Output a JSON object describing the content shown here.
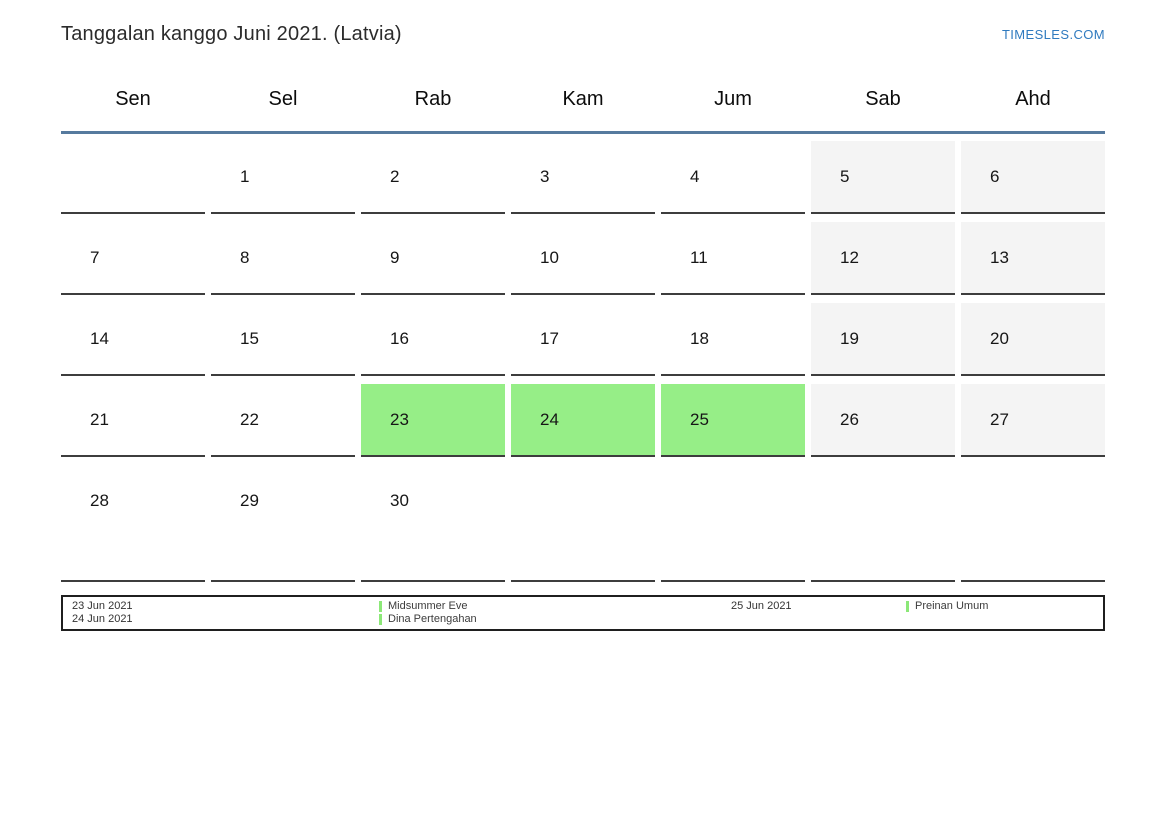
{
  "header": {
    "title": "Tanggalan kanggo Juni 2021. (Latvia)",
    "site_link": "TIMESLES.COM"
  },
  "calendar": {
    "day_headers": [
      "Sen",
      "Sel",
      "Rab",
      "Kam",
      "Jum",
      "Sab",
      "Ahd"
    ],
    "weeks": [
      [
        {
          "label": "",
          "type": "empty"
        },
        {
          "label": "1",
          "type": "day"
        },
        {
          "label": "2",
          "type": "day"
        },
        {
          "label": "3",
          "type": "day"
        },
        {
          "label": "4",
          "type": "day"
        },
        {
          "label": "5",
          "type": "weekend"
        },
        {
          "label": "6",
          "type": "weekend"
        }
      ],
      [
        {
          "label": "7",
          "type": "day"
        },
        {
          "label": "8",
          "type": "day"
        },
        {
          "label": "9",
          "type": "day"
        },
        {
          "label": "10",
          "type": "day"
        },
        {
          "label": "11",
          "type": "day"
        },
        {
          "label": "12",
          "type": "weekend"
        },
        {
          "label": "13",
          "type": "weekend"
        }
      ],
      [
        {
          "label": "14",
          "type": "day"
        },
        {
          "label": "15",
          "type": "day"
        },
        {
          "label": "16",
          "type": "day"
        },
        {
          "label": "17",
          "type": "day"
        },
        {
          "label": "18",
          "type": "day"
        },
        {
          "label": "19",
          "type": "weekend"
        },
        {
          "label": "20",
          "type": "weekend"
        }
      ],
      [
        {
          "label": "21",
          "type": "day"
        },
        {
          "label": "22",
          "type": "day"
        },
        {
          "label": "23",
          "type": "holiday"
        },
        {
          "label": "24",
          "type": "holiday"
        },
        {
          "label": "25",
          "type": "holiday"
        },
        {
          "label": "26",
          "type": "weekend"
        },
        {
          "label": "27",
          "type": "weekend"
        }
      ],
      [
        {
          "label": "28",
          "type": "day"
        },
        {
          "label": "29",
          "type": "day"
        },
        {
          "label": "30",
          "type": "day"
        },
        {
          "label": "",
          "type": "empty"
        },
        {
          "label": "",
          "type": "empty"
        },
        {
          "label": "",
          "type": "empty"
        },
        {
          "label": "",
          "type": "empty"
        }
      ]
    ]
  },
  "legend": {
    "groups": [
      {
        "dates": [
          "23 Jun 2021",
          "24 Jun 2021"
        ],
        "names": [
          "Midsummer Eve",
          "Dina Pertengahan"
        ]
      },
      {
        "dates": [
          "25 Jun 2021"
        ],
        "names": [
          "Preinan Umum"
        ]
      }
    ]
  },
  "colors": {
    "link_blue": "#2f7abf",
    "header_rule": "#567a9e",
    "cell_border": "#3d3d3d",
    "weekend_bg": "#f4f4f4",
    "holiday_bg": "#96ee87",
    "legend_bar": "#8ce878",
    "legend_border": "#1f1f1f"
  }
}
